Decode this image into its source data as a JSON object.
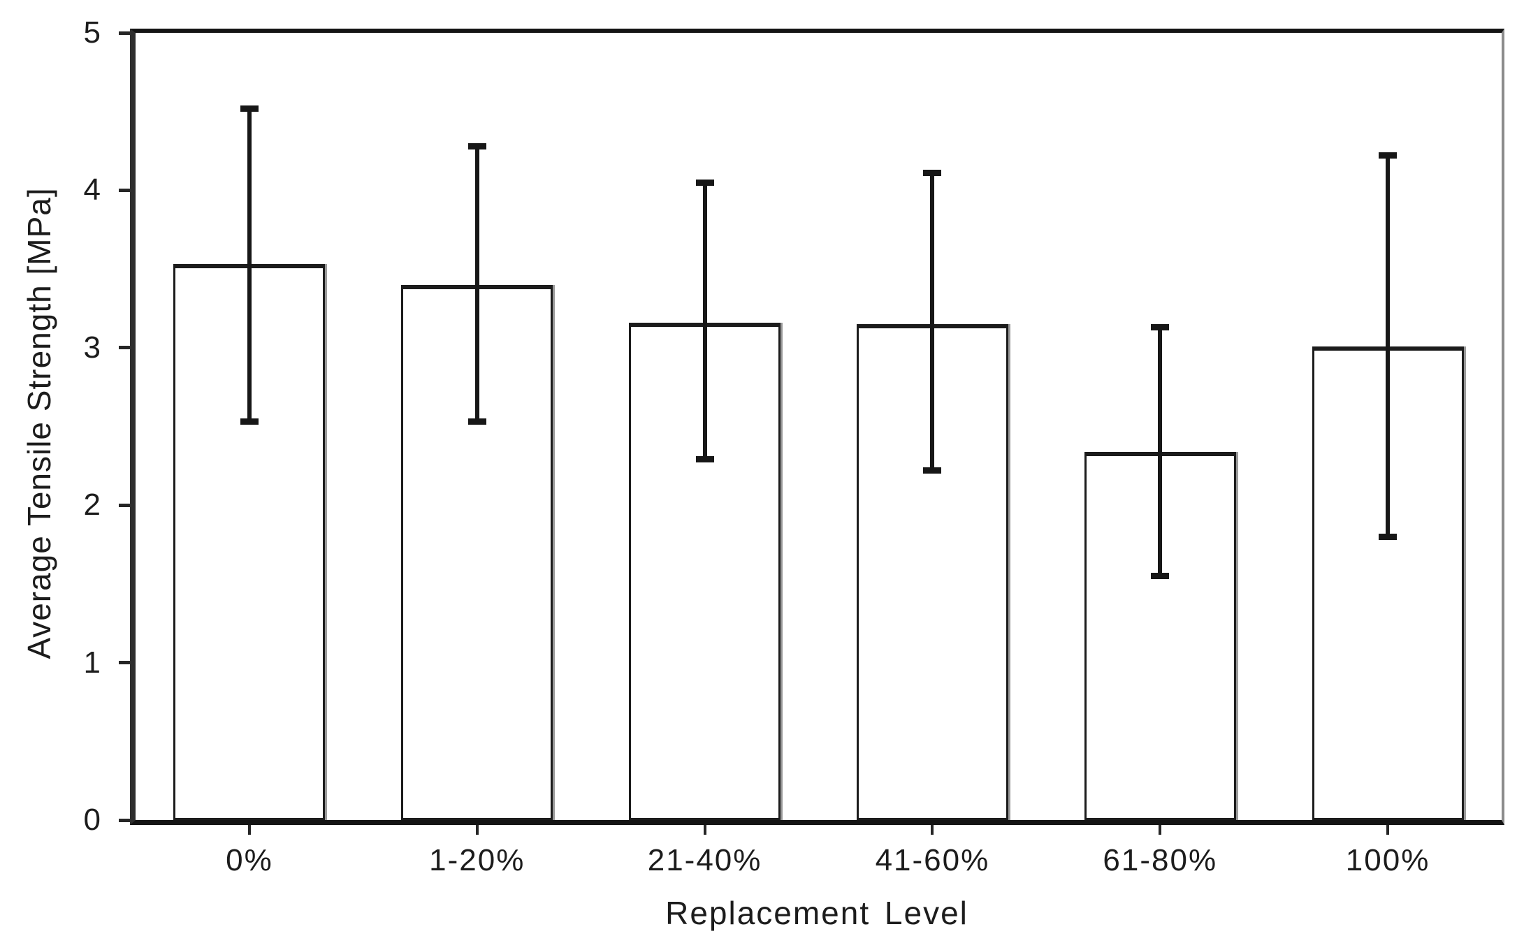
{
  "chart_data": {
    "type": "bar",
    "title": "",
    "xlabel": "Replacement Level",
    "ylabel": "Average Tensile Strength [MPa]",
    "categories": [
      "0%",
      "1-20%",
      "21-40%",
      "41-60%",
      "61-80%",
      "100%"
    ],
    "values": [
      3.53,
      3.4,
      3.16,
      3.15,
      2.34,
      3.01
    ],
    "error_upper": [
      4.52,
      4.28,
      4.05,
      4.11,
      3.13,
      4.22
    ],
    "error_lower": [
      2.53,
      2.53,
      2.29,
      2.22,
      1.55,
      1.8
    ],
    "ylim": [
      0,
      5
    ],
    "yticks": [
      0,
      1,
      2,
      3,
      4,
      5
    ],
    "grid": false,
    "legend_position": "none",
    "bar_fill": "#ffffff",
    "bar_border": "#1c1c1c",
    "axis_color": "#262626",
    "shadow_color": "#9a9a9a",
    "background": "#ffffff"
  }
}
